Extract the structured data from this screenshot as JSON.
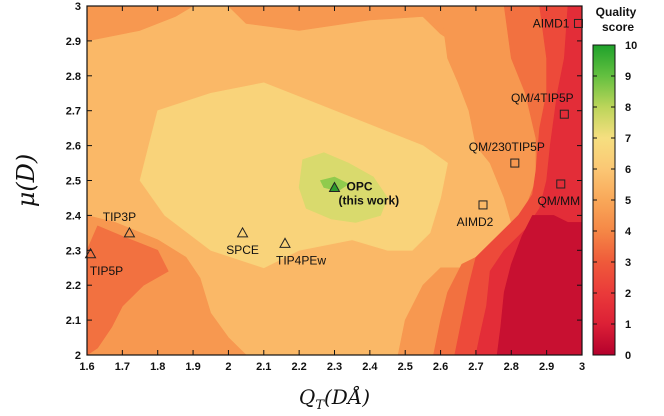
{
  "chart_data": {
    "type": "heatmap",
    "title": "",
    "xlabel_main": "Q",
    "xlabel_sub": "T",
    "xlabel_rest": "(DÅ)",
    "ylabel": "μ(D)",
    "xlim": [
      1.6,
      3.0
    ],
    "ylim": [
      2.0,
      3.0
    ],
    "x_ticks": [
      "1.6",
      "1.7",
      "1.8",
      "1.9",
      "2",
      "2.1",
      "2.2",
      "2.3",
      "2.4",
      "2.5",
      "2.6",
      "2.7",
      "2.8",
      "2.9",
      "3"
    ],
    "y_ticks": [
      "2",
      "2.1",
      "2.2",
      "2.3",
      "2.4",
      "2.5",
      "2.6",
      "2.7",
      "2.8",
      "2.9",
      "3"
    ],
    "colorbar": {
      "title_line1": "Quality",
      "title_line2": "score",
      "range": [
        0,
        10
      ],
      "ticks": [
        "0",
        "1",
        "2",
        "3",
        "4",
        "5",
        "6",
        "7",
        "8",
        "9",
        "10"
      ],
      "colors": [
        {
          "value": 0,
          "color": "#b4002c"
        },
        {
          "value": 1,
          "color": "#dc2036"
        },
        {
          "value": 2,
          "color": "#ea3a3a"
        },
        {
          "value": 3,
          "color": "#ef5a3a"
        },
        {
          "value": 4,
          "color": "#f58746"
        },
        {
          "value": 5,
          "color": "#f9a859"
        },
        {
          "value": 6,
          "color": "#fbc774"
        },
        {
          "value": 7,
          "color": "#f6df80"
        },
        {
          "value": 8,
          "color": "#bcd55a"
        },
        {
          "value": 9,
          "color": "#64c040"
        },
        {
          "value": 10,
          "color": "#1fa22b"
        }
      ]
    },
    "points": [
      {
        "name": "TIP3P",
        "x": 1.72,
        "y": 2.35,
        "marker": "triangle",
        "label_pos": "above-left"
      },
      {
        "name": "TIP5P",
        "x": 1.61,
        "y": 2.29,
        "marker": "triangle",
        "label_pos": "below"
      },
      {
        "name": "SPCE",
        "x": 2.04,
        "y": 2.35,
        "marker": "triangle",
        "label_pos": "below"
      },
      {
        "name": "TIP4PEw",
        "x": 2.16,
        "y": 2.32,
        "marker": "triangle",
        "label_pos": "below"
      },
      {
        "name": "OPC",
        "subname": "(this work)",
        "x": 2.3,
        "y": 2.48,
        "marker": "triangle-filled",
        "label_pos": "right",
        "bold": true
      },
      {
        "name": "AIMD2",
        "x": 2.72,
        "y": 2.43,
        "marker": "square",
        "label_pos": "below-left"
      },
      {
        "name": "QM/230TIP5P",
        "x": 2.81,
        "y": 2.55,
        "marker": "square",
        "label_pos": "above-left"
      },
      {
        "name": "QM/MM",
        "x": 2.94,
        "y": 2.49,
        "marker": "square",
        "label_pos": "below"
      },
      {
        "name": "QM/4TIP5P",
        "x": 2.95,
        "y": 2.69,
        "marker": "square",
        "label_pos": "above-left"
      },
      {
        "name": "AIMD1",
        "x": 2.99,
        "y": 2.95,
        "marker": "square",
        "label_pos": "left"
      }
    ],
    "regions": [
      {
        "score": 5.5,
        "poly": [
          [
            1.6,
            2.0
          ],
          [
            3.0,
            2.0
          ],
          [
            3.0,
            3.0
          ],
          [
            1.6,
            3.0
          ]
        ]
      },
      {
        "score": 4.5,
        "poly": [
          [
            1.6,
            2.9
          ],
          [
            1.75,
            2.93
          ],
          [
            1.85,
            2.97
          ],
          [
            1.9,
            3.0
          ],
          [
            1.6,
            3.0
          ]
        ]
      },
      {
        "score": 4.5,
        "poly": [
          [
            2.0,
            3.0
          ],
          [
            2.05,
            2.95
          ],
          [
            2.2,
            2.93
          ],
          [
            2.4,
            2.96
          ],
          [
            2.55,
            2.97
          ],
          [
            2.6,
            2.92
          ],
          [
            2.75,
            2.82
          ],
          [
            2.85,
            2.75
          ],
          [
            2.95,
            2.8
          ],
          [
            3.0,
            2.85
          ],
          [
            3.0,
            3.0
          ]
        ]
      },
      {
        "score": 6.5,
        "poly": [
          [
            1.8,
            2.7
          ],
          [
            1.95,
            2.75
          ],
          [
            2.1,
            2.78
          ],
          [
            2.25,
            2.72
          ],
          [
            2.4,
            2.66
          ],
          [
            2.55,
            2.6
          ],
          [
            2.62,
            2.55
          ],
          [
            2.6,
            2.45
          ],
          [
            2.57,
            2.35
          ],
          [
            2.52,
            2.3
          ],
          [
            2.45,
            2.3
          ],
          [
            2.35,
            2.33
          ],
          [
            2.2,
            2.3
          ],
          [
            2.1,
            2.25
          ],
          [
            1.95,
            2.3
          ],
          [
            1.82,
            2.4
          ],
          [
            1.75,
            2.5
          ],
          [
            1.78,
            2.62
          ]
        ]
      },
      {
        "score": 7.5,
        "poly": [
          [
            2.21,
            2.56
          ],
          [
            2.27,
            2.58
          ],
          [
            2.34,
            2.55
          ],
          [
            2.41,
            2.51
          ],
          [
            2.45,
            2.45
          ],
          [
            2.43,
            2.4
          ],
          [
            2.36,
            2.38
          ],
          [
            2.29,
            2.39
          ],
          [
            2.22,
            2.42
          ],
          [
            2.2,
            2.48
          ]
        ]
      },
      {
        "score": 8.5,
        "poly": [
          [
            2.26,
            2.5
          ],
          [
            2.3,
            2.51
          ],
          [
            2.34,
            2.49
          ],
          [
            2.31,
            2.47
          ],
          [
            2.27,
            2.48
          ]
        ]
      },
      {
        "score": 4.5,
        "poly": [
          [
            1.6,
            2.4
          ],
          [
            1.68,
            2.38
          ],
          [
            1.8,
            2.33
          ],
          [
            1.88,
            2.28
          ],
          [
            1.92,
            2.22
          ],
          [
            1.95,
            2.12
          ],
          [
            2.0,
            2.05
          ],
          [
            2.05,
            2.0
          ],
          [
            1.6,
            2.0
          ]
        ]
      },
      {
        "score": 3.5,
        "poly": [
          [
            1.63,
            2.37
          ],
          [
            1.7,
            2.34
          ],
          [
            1.8,
            2.3
          ],
          [
            1.83,
            2.24
          ],
          [
            1.76,
            2.2
          ],
          [
            1.7,
            2.14
          ],
          [
            1.67,
            2.08
          ],
          [
            1.63,
            2.02
          ],
          [
            1.6,
            2.0
          ],
          [
            1.6,
            2.3
          ]
        ]
      },
      {
        "score": 4.5,
        "poly": [
          [
            2.6,
            3.0
          ],
          [
            2.62,
            2.85
          ],
          [
            2.65,
            2.78
          ],
          [
            2.68,
            2.7
          ],
          [
            2.7,
            2.6
          ],
          [
            2.74,
            2.55
          ],
          [
            2.78,
            2.45
          ],
          [
            2.8,
            2.38
          ],
          [
            2.78,
            2.3
          ],
          [
            2.7,
            2.25
          ],
          [
            2.6,
            2.25
          ],
          [
            2.55,
            2.2
          ],
          [
            2.5,
            2.1
          ],
          [
            2.48,
            2.0
          ],
          [
            3.0,
            2.0
          ],
          [
            3.0,
            3.0
          ]
        ]
      },
      {
        "score": 3.5,
        "poly": [
          [
            2.78,
            3.0
          ],
          [
            2.8,
            2.85
          ],
          [
            2.84,
            2.75
          ],
          [
            2.87,
            2.62
          ],
          [
            2.87,
            2.5
          ],
          [
            2.84,
            2.42
          ],
          [
            2.8,
            2.35
          ],
          [
            2.74,
            2.3
          ],
          [
            2.66,
            2.26
          ],
          [
            2.62,
            2.18
          ],
          [
            2.6,
            2.1
          ],
          [
            2.58,
            2.0
          ],
          [
            3.0,
            2.0
          ],
          [
            3.0,
            3.0
          ]
        ]
      },
      {
        "score": 2.5,
        "poly": [
          [
            2.88,
            3.0
          ],
          [
            2.9,
            2.85
          ],
          [
            2.9,
            2.75
          ],
          [
            2.88,
            2.65
          ],
          [
            2.87,
            2.53
          ],
          [
            2.86,
            2.46
          ],
          [
            2.82,
            2.4
          ],
          [
            2.75,
            2.33
          ],
          [
            2.7,
            2.28
          ],
          [
            2.68,
            2.2
          ],
          [
            2.66,
            2.1
          ],
          [
            2.64,
            2.0
          ],
          [
            3.0,
            2.0
          ],
          [
            3.0,
            3.0
          ]
        ]
      },
      {
        "score": 1.5,
        "poly": [
          [
            2.96,
            3.0
          ],
          [
            2.95,
            2.85
          ],
          [
            2.93,
            2.75
          ],
          [
            2.91,
            2.6
          ],
          [
            2.9,
            2.5
          ],
          [
            2.88,
            2.42
          ],
          [
            2.84,
            2.36
          ],
          [
            2.78,
            2.3
          ],
          [
            2.74,
            2.24
          ],
          [
            2.73,
            2.14
          ],
          [
            2.71,
            2.05
          ],
          [
            2.7,
            2.0
          ],
          [
            3.0,
            2.0
          ],
          [
            3.0,
            3.0
          ]
        ]
      },
      {
        "score": 0.5,
        "poly": [
          [
            2.86,
            2.4
          ],
          [
            2.92,
            2.4
          ],
          [
            2.96,
            2.38
          ],
          [
            3.0,
            2.38
          ],
          [
            3.0,
            2.0
          ],
          [
            2.76,
            2.0
          ],
          [
            2.77,
            2.08
          ],
          [
            2.78,
            2.18
          ],
          [
            2.8,
            2.26
          ],
          [
            2.83,
            2.34
          ]
        ]
      }
    ]
  }
}
